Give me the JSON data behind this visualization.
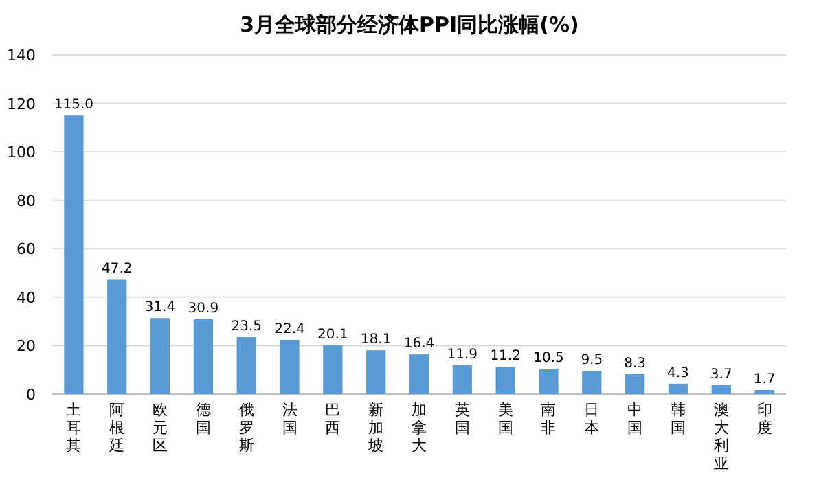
{
  "chart_data": {
    "type": "bar",
    "title": "3月全球部分经济体PPI同比涨幅(%)",
    "categories": [
      "土耳其",
      "阿根廷",
      "欧元区",
      "德国",
      "俄罗斯",
      "法国",
      "巴西",
      "新加坡",
      "加拿大",
      "英国",
      "美国",
      "南非",
      "日本",
      "中国",
      "韩国",
      "澳大利亚",
      "印度"
    ],
    "values": [
      115.0,
      47.2,
      31.4,
      30.9,
      23.5,
      22.4,
      20.1,
      18.1,
      16.4,
      11.9,
      11.2,
      10.5,
      9.5,
      8.3,
      4.3,
      3.7,
      1.7
    ],
    "value_labels": [
      "115.0",
      "47.2",
      "31.4",
      "30.9",
      "23.5",
      "22.4",
      "20.1",
      "18.1",
      "16.4",
      "11.9",
      "11.2",
      "10.5",
      "9.5",
      "8.3",
      "4.3",
      "3.7",
      "1.7"
    ],
    "color": "#5b9bd5",
    "ylim": [
      0,
      140
    ],
    "yticks": [
      0,
      20,
      40,
      60,
      80,
      100,
      120,
      140
    ],
    "grid": "y"
  }
}
